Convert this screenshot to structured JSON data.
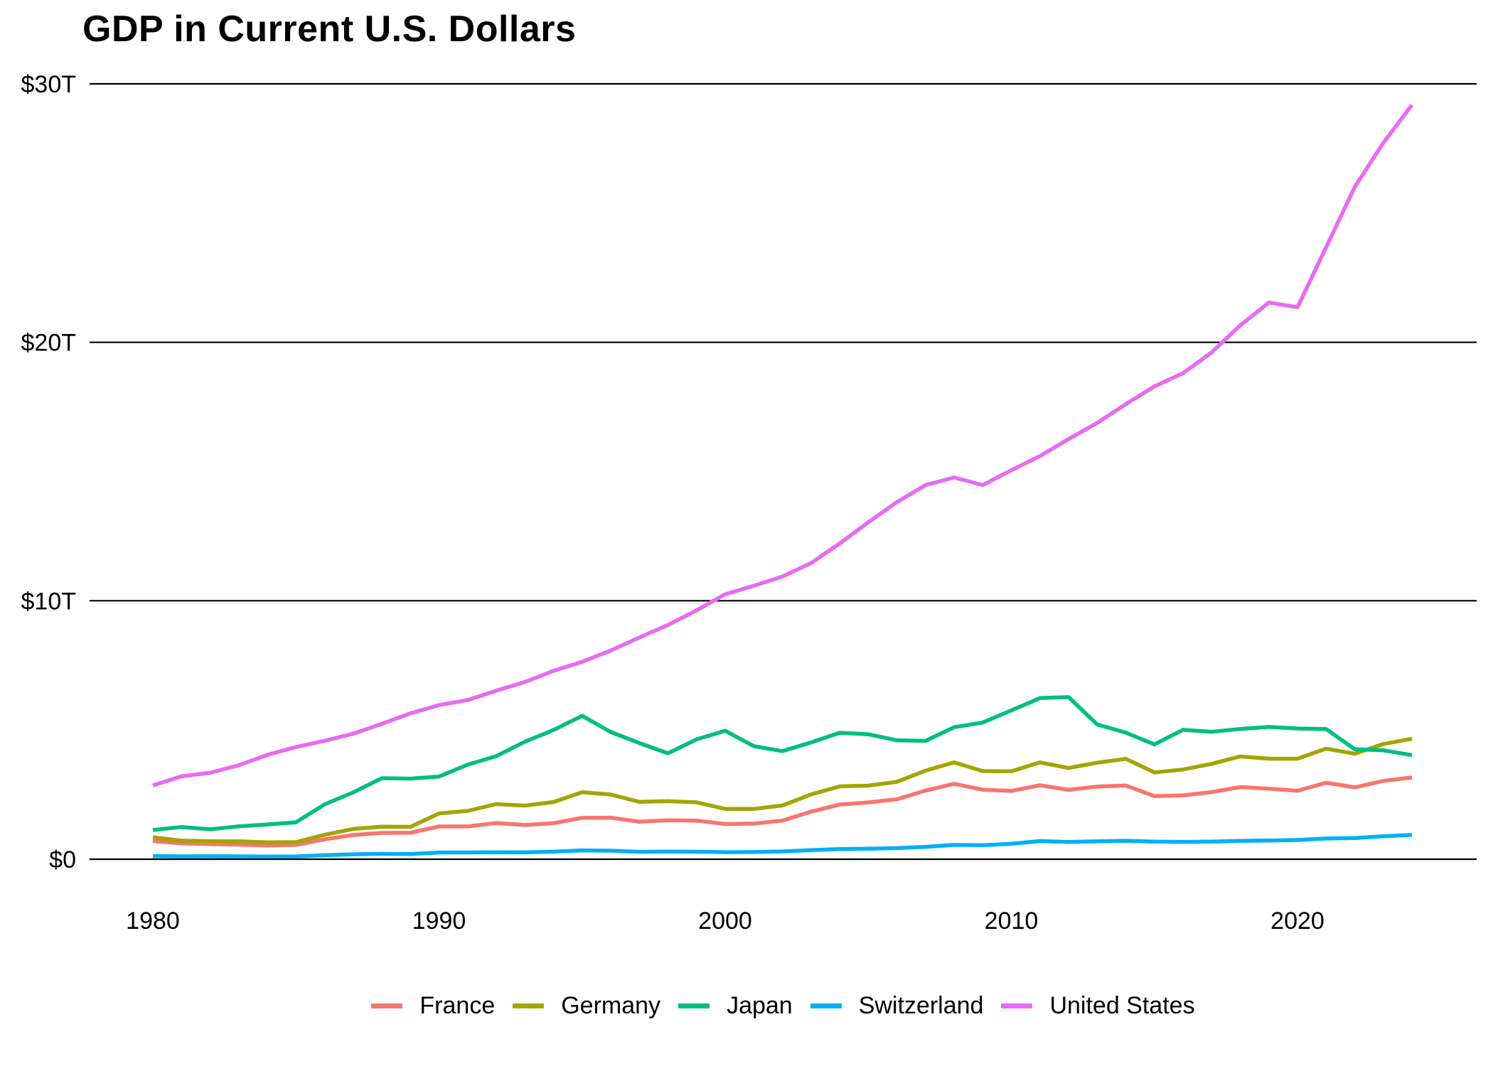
{
  "title": "GDP in Current U.S. Dollars",
  "chart_data": {
    "type": "line",
    "title": "GDP in Current U.S. Dollars",
    "xlabel": "",
    "ylabel": "",
    "y_unit": "trillions of current U.S. dollars",
    "xlim": [
      1980,
      2024
    ],
    "ylim": [
      0,
      30
    ],
    "grid": "horizontal-major-only",
    "legend_position": "bottom-center",
    "x_ticks": [
      1980,
      1990,
      2000,
      2010,
      2020
    ],
    "y_ticks": [
      {
        "value": 0,
        "label": "$0"
      },
      {
        "value": 10,
        "label": "$10T"
      },
      {
        "value": 20,
        "label": "$20T"
      },
      {
        "value": 30,
        "label": "$30T"
      }
    ],
    "x": [
      1980,
      1981,
      1982,
      1983,
      1984,
      1985,
      1986,
      1987,
      1988,
      1989,
      1990,
      1991,
      1992,
      1993,
      1994,
      1995,
      1996,
      1997,
      1998,
      1999,
      2000,
      2001,
      2002,
      2003,
      2004,
      2005,
      2006,
      2007,
      2008,
      2009,
      2010,
      2011,
      2012,
      2013,
      2014,
      2015,
      2016,
      2017,
      2018,
      2019,
      2020,
      2021,
      2022,
      2023,
      2024
    ],
    "series": [
      {
        "name": "France",
        "color": "#F8766D",
        "values": [
          0.701,
          0.616,
          0.584,
          0.563,
          0.532,
          0.553,
          0.771,
          0.934,
          1.018,
          1.025,
          1.269,
          1.269,
          1.401,
          1.322,
          1.394,
          1.601,
          1.605,
          1.452,
          1.503,
          1.492,
          1.362,
          1.377,
          1.494,
          1.84,
          2.115,
          2.196,
          2.318,
          2.657,
          2.918,
          2.69,
          2.642,
          2.861,
          2.683,
          2.811,
          2.852,
          2.439,
          2.472,
          2.595,
          2.79,
          2.728,
          2.647,
          2.959,
          2.779,
          3.031,
          3.162
        ]
      },
      {
        "name": "Germany",
        "color": "#A3A500",
        "values": [
          0.85,
          0.717,
          0.693,
          0.69,
          0.652,
          0.661,
          0.944,
          1.171,
          1.26,
          1.252,
          1.772,
          1.869,
          2.132,
          2.072,
          2.21,
          2.592,
          2.503,
          2.218,
          2.243,
          2.199,
          1.948,
          1.945,
          2.079,
          2.506,
          2.819,
          2.846,
          2.994,
          3.425,
          3.746,
          3.411,
          3.402,
          3.744,
          3.527,
          3.733,
          3.884,
          3.358,
          3.469,
          3.69,
          3.975,
          3.889,
          3.887,
          4.279,
          4.082,
          4.456,
          4.66
        ]
      },
      {
        "name": "Japan",
        "color": "#00BF7D",
        "values": [
          1.129,
          1.245,
          1.158,
          1.27,
          1.345,
          1.427,
          2.121,
          2.584,
          3.134,
          3.117,
          3.197,
          3.657,
          3.988,
          4.544,
          4.998,
          5.546,
          4.923,
          4.492,
          4.098,
          4.636,
          4.968,
          4.374,
          4.182,
          4.519,
          4.893,
          4.834,
          4.601,
          4.579,
          5.106,
          5.289,
          5.759,
          6.233,
          6.272,
          5.212,
          4.897,
          4.444,
          5.004,
          4.931,
          5.041,
          5.118,
          5.056,
          5.034,
          4.256,
          4.213,
          4.026
        ]
      },
      {
        "name": "Switzerland",
        "color": "#00B0F6",
        "values": [
          0.12,
          0.11,
          0.113,
          0.111,
          0.105,
          0.108,
          0.153,
          0.191,
          0.206,
          0.202,
          0.258,
          0.261,
          0.268,
          0.263,
          0.292,
          0.342,
          0.33,
          0.285,
          0.295,
          0.29,
          0.272,
          0.279,
          0.301,
          0.353,
          0.394,
          0.408,
          0.43,
          0.479,
          0.554,
          0.541,
          0.598,
          0.7,
          0.668,
          0.689,
          0.711,
          0.679,
          0.671,
          0.68,
          0.706,
          0.722,
          0.742,
          0.8,
          0.818,
          0.885,
          0.942
        ]
      },
      {
        "name": "United States",
        "color": "#E76BF3",
        "values": [
          2.857,
          3.207,
          3.344,
          3.634,
          4.038,
          4.339,
          4.58,
          4.855,
          5.236,
          5.642,
          5.963,
          6.158,
          6.52,
          6.859,
          7.287,
          7.64,
          8.073,
          8.578,
          9.063,
          9.631,
          10.251,
          10.582,
          10.936,
          11.458,
          12.214,
          13.037,
          13.815,
          14.474,
          14.77,
          14.478,
          15.049,
          15.6,
          16.254,
          16.88,
          17.608,
          18.295,
          18.805,
          19.612,
          20.657,
          21.54,
          21.354,
          23.681,
          26.007,
          27.721,
          29.185
        ]
      }
    ]
  }
}
